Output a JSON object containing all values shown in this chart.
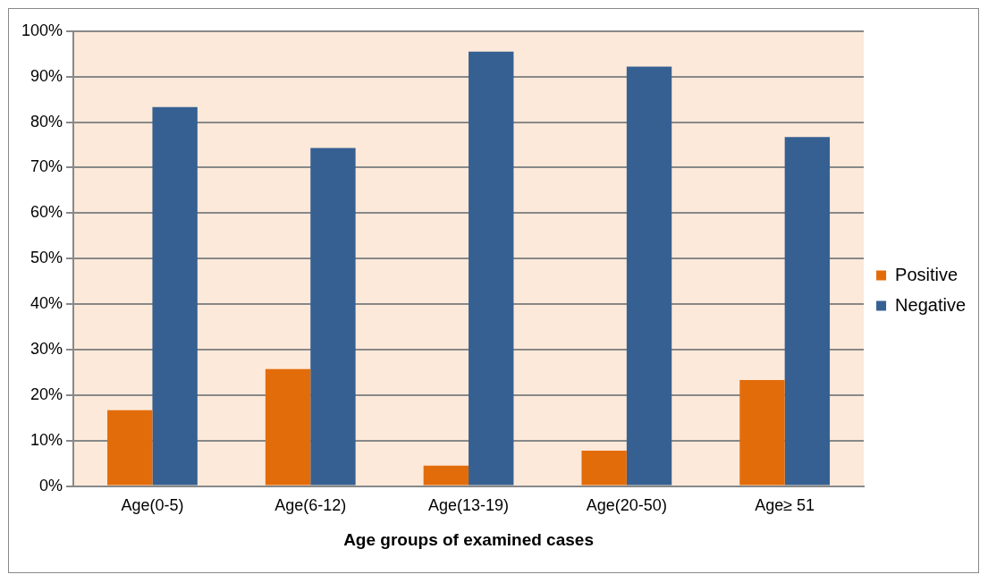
{
  "chart_data": {
    "type": "bar",
    "xlabel": "Age groups of examined cases",
    "categories": [
      "Age(0-5)",
      "Age(6-12)",
      "Age(13-19)",
      "Age(20-50)",
      "Age≥ 51"
    ],
    "series": [
      {
        "name": "Positive",
        "color": "#e36c0a",
        "values": [
          16.7,
          25.7,
          4.5,
          7.8,
          23.3
        ]
      },
      {
        "name": "Negative",
        "color": "#366092",
        "values": [
          83.3,
          74.3,
          95.5,
          92.2,
          76.7
        ]
      }
    ],
    "ylim": [
      0,
      100
    ],
    "yticks": [
      {
        "value": 0,
        "label": "0%"
      },
      {
        "value": 10,
        "label": "10%"
      },
      {
        "value": 20,
        "label": "20%"
      },
      {
        "value": 30,
        "label": "30%"
      },
      {
        "value": 40,
        "label": "40%"
      },
      {
        "value": 50,
        "label": "50%"
      },
      {
        "value": 60,
        "label": "60%"
      },
      {
        "value": 70,
        "label": "70%"
      },
      {
        "value": 80,
        "label": "80%"
      },
      {
        "value": 90,
        "label": "90%"
      },
      {
        "value": 100,
        "label": "100%"
      }
    ],
    "grid": "y",
    "legend": "right"
  }
}
